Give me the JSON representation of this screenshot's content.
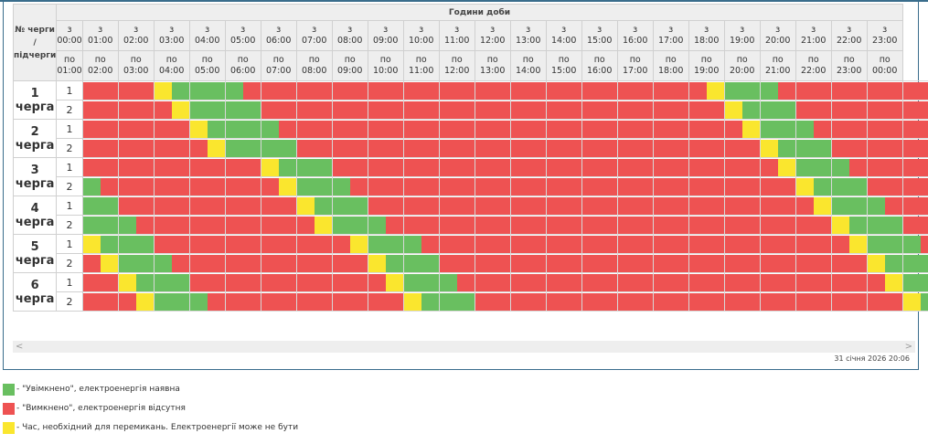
{
  "table": {
    "header_title": "Години доби",
    "row_header": "№ черги / підчерги",
    "from_prefix": "з",
    "to_prefix": "по",
    "hours_from": [
      "00:00",
      "01:00",
      "02:00",
      "03:00",
      "04:00",
      "05:00",
      "06:00",
      "07:00",
      "08:00",
      "09:00",
      "10:00",
      "11:00",
      "12:00",
      "13:00",
      "14:00",
      "15:00",
      "16:00",
      "17:00",
      "18:00",
      "19:00",
      "20:00",
      "21:00",
      "22:00",
      "23:00"
    ],
    "hours_to": [
      "01:00",
      "02:00",
      "03:00",
      "04:00",
      "05:00",
      "06:00",
      "07:00",
      "08:00",
      "09:00",
      "10:00",
      "11:00",
      "12:00",
      "13:00",
      "14:00",
      "15:00",
      "16:00",
      "17:00",
      "18:00",
      "19:00",
      "20:00",
      "21:00",
      "22:00",
      "23:00",
      "00:00"
    ],
    "status_colors": {
      "on": "#69bf60",
      "off": "#ee5252",
      "switch": "#fae62e"
    },
    "groups": [
      {
        "number": "1",
        "label": "черга",
        "subgroups": [
          {
            "sub": "1",
            "cells": [
              "off",
              "off",
              "off",
              "off",
              "sw",
              "on",
              "on",
              "on",
              "on",
              "off",
              "off",
              "off",
              "off",
              "off",
              "off",
              "off",
              "off",
              "off",
              "off",
              "off",
              "off",
              "off",
              "off",
              "off",
              "off",
              "off",
              "off",
              "off",
              "off",
              "off",
              "off",
              "off",
              "off",
              "off",
              "off",
              "sw",
              "on",
              "on",
              "on",
              "off",
              "off",
              "off",
              "off",
              "off",
              "off",
              "off",
              "off",
              "off"
            ]
          },
          {
            "sub": "2",
            "cells": [
              "off",
              "off",
              "off",
              "off",
              "off",
              "sw",
              "on",
              "on",
              "on",
              "on",
              "off",
              "off",
              "off",
              "off",
              "off",
              "off",
              "off",
              "off",
              "off",
              "off",
              "off",
              "off",
              "off",
              "off",
              "off",
              "off",
              "off",
              "off",
              "off",
              "off",
              "off",
              "off",
              "off",
              "off",
              "off",
              "off",
              "sw",
              "on",
              "on",
              "on",
              "off",
              "off",
              "off",
              "off",
              "off",
              "off",
              "off",
              "off"
            ]
          }
        ]
      },
      {
        "number": "2",
        "label": "черга",
        "subgroups": [
          {
            "sub": "1",
            "cells": [
              "off",
              "off",
              "off",
              "off",
              "off",
              "off",
              "sw",
              "on",
              "on",
              "on",
              "on",
              "off",
              "off",
              "off",
              "off",
              "off",
              "off",
              "off",
              "off",
              "off",
              "off",
              "off",
              "off",
              "off",
              "off",
              "off",
              "off",
              "off",
              "off",
              "off",
              "off",
              "off",
              "off",
              "off",
              "off",
              "off",
              "off",
              "sw",
              "on",
              "on",
              "on",
              "off",
              "off",
              "off",
              "off",
              "off",
              "off",
              "off"
            ]
          },
          {
            "sub": "2",
            "cells": [
              "off",
              "off",
              "off",
              "off",
              "off",
              "off",
              "off",
              "sw",
              "on",
              "on",
              "on",
              "on",
              "off",
              "off",
              "off",
              "off",
              "off",
              "off",
              "off",
              "off",
              "off",
              "off",
              "off",
              "off",
              "off",
              "off",
              "off",
              "off",
              "off",
              "off",
              "off",
              "off",
              "off",
              "off",
              "off",
              "off",
              "off",
              "off",
              "sw",
              "on",
              "on",
              "on",
              "off",
              "off",
              "off",
              "off",
              "off",
              "off"
            ]
          }
        ]
      },
      {
        "number": "3",
        "label": "черга",
        "subgroups": [
          {
            "sub": "1",
            "cells": [
              "off",
              "off",
              "off",
              "off",
              "off",
              "off",
              "off",
              "off",
              "off",
              "off",
              "sw",
              "on",
              "on",
              "on",
              "off",
              "off",
              "off",
              "off",
              "off",
              "off",
              "off",
              "off",
              "off",
              "off",
              "off",
              "off",
              "off",
              "off",
              "off",
              "off",
              "off",
              "off",
              "off",
              "off",
              "off",
              "off",
              "off",
              "off",
              "off",
              "sw",
              "on",
              "on",
              "on",
              "off",
              "off",
              "off",
              "off",
              "off"
            ]
          },
          {
            "sub": "2",
            "cells": [
              "on",
              "off",
              "off",
              "off",
              "off",
              "off",
              "off",
              "off",
              "off",
              "off",
              "off",
              "sw",
              "on",
              "on",
              "on",
              "off",
              "off",
              "off",
              "off",
              "off",
              "off",
              "off",
              "off",
              "off",
              "off",
              "off",
              "off",
              "off",
              "off",
              "off",
              "off",
              "off",
              "off",
              "off",
              "off",
              "off",
              "off",
              "off",
              "off",
              "off",
              "sw",
              "on",
              "on",
              "on",
              "off",
              "off",
              "off",
              "off"
            ]
          }
        ]
      },
      {
        "number": "4",
        "label": "черга",
        "subgroups": [
          {
            "sub": "1",
            "cells": [
              "on",
              "on",
              "off",
              "off",
              "off",
              "off",
              "off",
              "off",
              "off",
              "off",
              "off",
              "off",
              "sw",
              "on",
              "on",
              "on",
              "off",
              "off",
              "off",
              "off",
              "off",
              "off",
              "off",
              "off",
              "off",
              "off",
              "off",
              "off",
              "off",
              "off",
              "off",
              "off",
              "off",
              "off",
              "off",
              "off",
              "off",
              "off",
              "off",
              "off",
              "off",
              "sw",
              "on",
              "on",
              "on",
              "off",
              "off",
              "off"
            ]
          },
          {
            "sub": "2",
            "cells": [
              "on",
              "on",
              "on",
              "off",
              "off",
              "off",
              "off",
              "off",
              "off",
              "off",
              "off",
              "off",
              "off",
              "sw",
              "on",
              "on",
              "on",
              "off",
              "off",
              "off",
              "off",
              "off",
              "off",
              "off",
              "off",
              "off",
              "off",
              "off",
              "off",
              "off",
              "off",
              "off",
              "off",
              "off",
              "off",
              "off",
              "off",
              "off",
              "off",
              "off",
              "off",
              "off",
              "sw",
              "on",
              "on",
              "on",
              "off",
              "off"
            ]
          }
        ]
      },
      {
        "number": "5",
        "label": "черга",
        "subgroups": [
          {
            "sub": "1",
            "cells": [
              "sw",
              "on",
              "on",
              "on",
              "off",
              "off",
              "off",
              "off",
              "off",
              "off",
              "off",
              "off",
              "off",
              "off",
              "off",
              "sw",
              "on",
              "on",
              "on",
              "off",
              "off",
              "off",
              "off",
              "off",
              "off",
              "off",
              "off",
              "off",
              "off",
              "off",
              "off",
              "off",
              "off",
              "off",
              "off",
              "off",
              "off",
              "off",
              "off",
              "off",
              "off",
              "off",
              "off",
              "sw",
              "on",
              "on",
              "on",
              "off"
            ]
          },
          {
            "sub": "2",
            "cells": [
              "off",
              "sw",
              "on",
              "on",
              "on",
              "off",
              "off",
              "off",
              "off",
              "off",
              "off",
              "off",
              "off",
              "off",
              "off",
              "off",
              "sw",
              "on",
              "on",
              "on",
              "off",
              "off",
              "off",
              "off",
              "off",
              "off",
              "off",
              "off",
              "off",
              "off",
              "off",
              "off",
              "off",
              "off",
              "off",
              "off",
              "off",
              "off",
              "off",
              "off",
              "off",
              "off",
              "off",
              "off",
              "sw",
              "on",
              "on",
              "on"
            ]
          }
        ]
      },
      {
        "number": "6",
        "label": "черга",
        "subgroups": [
          {
            "sub": "1",
            "cells": [
              "off",
              "off",
              "sw",
              "on",
              "on",
              "on",
              "off",
              "off",
              "off",
              "off",
              "off",
              "off",
              "off",
              "off",
              "off",
              "off",
              "off",
              "sw",
              "on",
              "on",
              "on",
              "off",
              "off",
              "off",
              "off",
              "off",
              "off",
              "off",
              "off",
              "off",
              "off",
              "off",
              "off",
              "off",
              "off",
              "off",
              "off",
              "off",
              "off",
              "off",
              "off",
              "off",
              "off",
              "off",
              "off",
              "sw",
              "on",
              "on"
            ]
          },
          {
            "sub": "2",
            "cells": [
              "off",
              "off",
              "off",
              "sw",
              "on",
              "on",
              "on",
              "off",
              "off",
              "off",
              "off",
              "off",
              "off",
              "off",
              "off",
              "off",
              "off",
              "off",
              "sw",
              "on",
              "on",
              "on",
              "off",
              "off",
              "off",
              "off",
              "off",
              "off",
              "off",
              "off",
              "off",
              "off",
              "off",
              "off",
              "off",
              "off",
              "off",
              "off",
              "off",
              "off",
              "off",
              "off",
              "off",
              "off",
              "off",
              "off",
              "sw",
              "on"
            ]
          }
        ]
      }
    ]
  },
  "scrollbar": {
    "left_arrow": "<",
    "right_arrow": ">"
  },
  "timestamp": "31 січня 2026 20:06",
  "legend": [
    {
      "status": "on",
      "color": "#69bf60",
      "text": "- \"Увімкнено\", електроенергія наявна"
    },
    {
      "status": "off",
      "color": "#ee5252",
      "text": "- \"Вимкнено\", електроенергія відсутня"
    },
    {
      "status": "switch",
      "color": "#fae62e",
      "text": "- Час, необхідний для перемикань. Електроенергії може не бути"
    }
  ]
}
